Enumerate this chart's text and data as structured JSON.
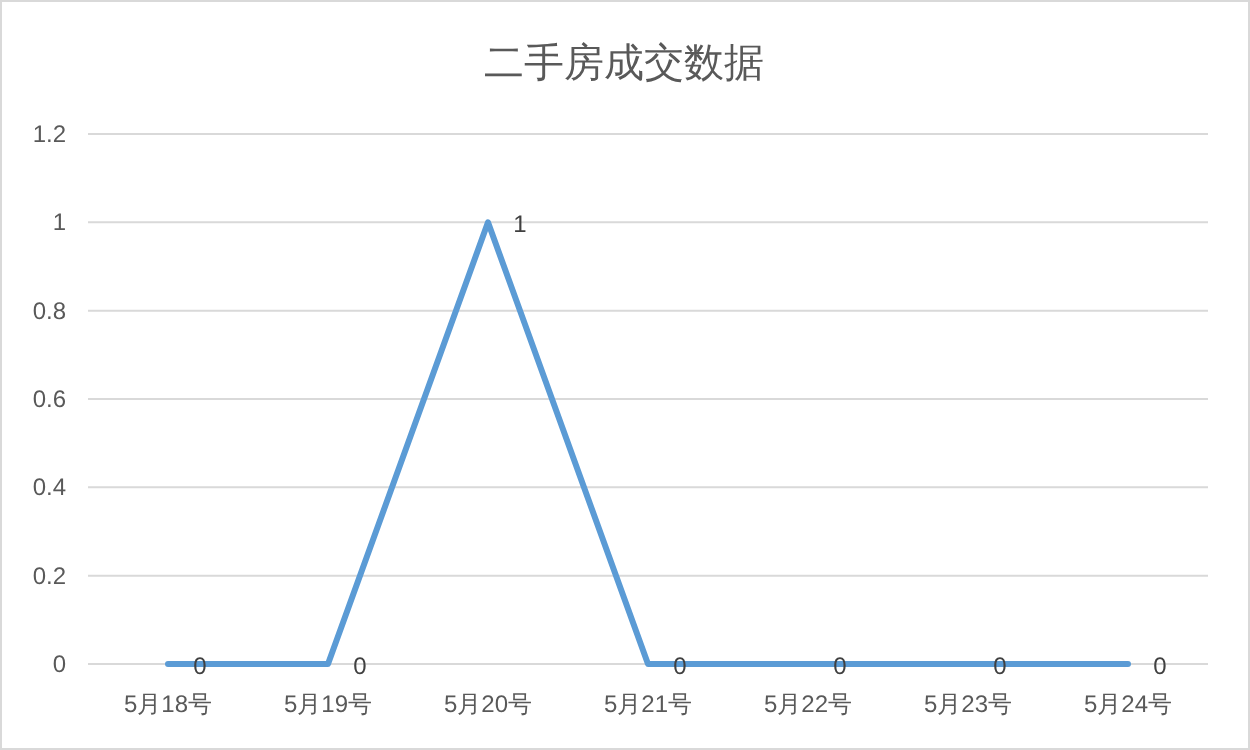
{
  "chart_data": {
    "type": "line",
    "title": "二手房成交数据",
    "categories": [
      "5月18号",
      "5月19号",
      "5月20号",
      "5月21号",
      "5月22号",
      "5月23号",
      "5月24号"
    ],
    "series": [
      {
        "color": "#5b9bd5",
        "values": [
          0,
          0,
          1,
          0,
          0,
          0,
          0
        ]
      }
    ],
    "ylim": [
      0,
      1.2
    ],
    "yticks": [
      0,
      0.2,
      0.4,
      0.6,
      0.8,
      1,
      1.2
    ],
    "grid": "y",
    "data_labels": true,
    "line_style": "solid"
  }
}
